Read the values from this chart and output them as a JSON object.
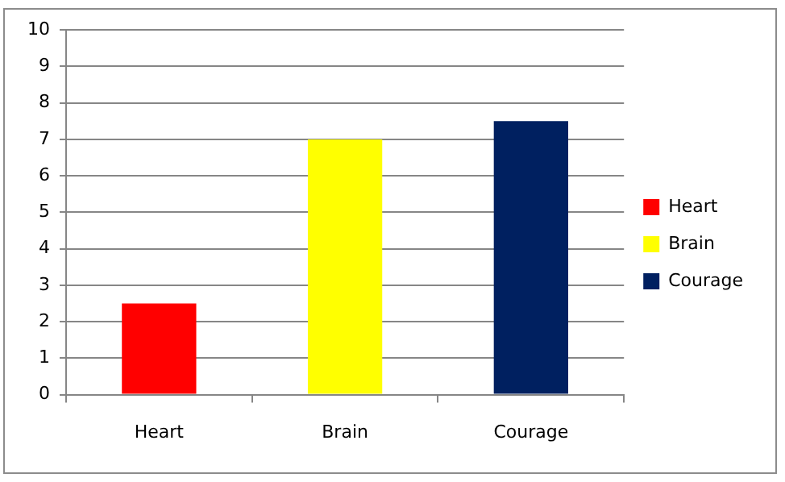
{
  "chart_data": {
    "type": "bar",
    "categories": [
      "Heart",
      "Brain",
      "Courage"
    ],
    "series": [
      {
        "name": "Heart",
        "color": "#ff0000",
        "values": [
          2.5,
          null,
          null
        ]
      },
      {
        "name": "Brain",
        "color": "#ffff00",
        "values": [
          null,
          7,
          null
        ]
      },
      {
        "name": "Courage",
        "color": "#002060",
        "values": [
          null,
          null,
          7.5
        ]
      }
    ],
    "ylim": [
      0,
      10
    ],
    "yticks": [
      0,
      1,
      2,
      3,
      4,
      5,
      6,
      7,
      8,
      9,
      10
    ],
    "grid": "y",
    "legend": "right"
  }
}
